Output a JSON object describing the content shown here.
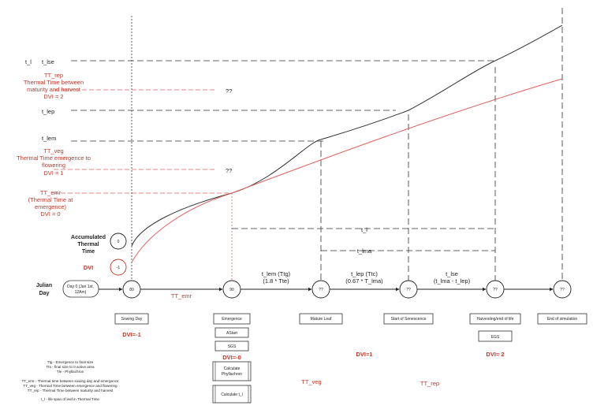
{
  "labels": {
    "t_l": "t_l",
    "t_lse": "t_lse",
    "tt_rep_1": "TT_rep",
    "tt_rep_2": "Thermal Time between",
    "tt_rep_3": "maturity and harvest",
    "tt_rep_4": "DVI = 2",
    "t_lep": "t_lep",
    "t_lem": "t_lem",
    "tt_veg_1": "TT_veg",
    "tt_veg_2": "Thermal Time  emergence to",
    "tt_veg_3": "flowering",
    "tt_veg_4": "DVI = 1",
    "tt_emr_1": "TT_emr",
    "tt_emr_2": "(Thermal Time at",
    "tt_emr_3": "emergence)",
    "tt_emr_4": "DVI = 0",
    "qq_top": "??",
    "qq_mid": "??",
    "acc_1": "Accumulated",
    "acc_2": "Thermal",
    "acc_3": "Time",
    "acc_val": "0",
    "dvi_label": "DVI",
    "dvi_val": "-1",
    "julian_1": "Julian",
    "julian_2": "Day",
    "day0_1": "Day 0 (Jan 1st,",
    "day0_2": "12Am)",
    "t_l_span": "t_l",
    "t_lma_span": "t_lma",
    "seg1_1": "t_lem (Ttg)",
    "seg1_2": "(1.8 * Tte)",
    "seg2_1": "t_lep (Ttc)",
    "seg2_2": "(0.67 * T_lma)",
    "seg3_1": "t_lse",
    "seg3_2": "(t_lma - t_lep)",
    "tt_emr_axis": "TT_emr",
    "tt_veg_axis": "TT_veg",
    "tt_rep_axis": "TT_rep"
  },
  "nodes": [
    {
      "id": "sowing",
      "value": "80",
      "box": "Sowing Day",
      "dvi": "DVI=-1"
    },
    {
      "id": "emergence",
      "value": "90",
      "box": "Emergence",
      "dvi": "DVI=-0"
    },
    {
      "id": "mature",
      "value": "??",
      "box": "Mature Leaf",
      "dvi": ""
    },
    {
      "id": "senescence",
      "value": "??",
      "box": "Start of Senescence",
      "dvi": "DVI=1"
    },
    {
      "id": "harvest",
      "value": "??",
      "box": "Harvesting/end of life",
      "dvi": "DVI= 2"
    },
    {
      "id": "end",
      "value": "??",
      "box": "End of simulation",
      "dvi": ""
    }
  ],
  "emergence_steps": [
    "AStart",
    "SGS",
    "Calculate Phyllachron",
    "Calculate t_l"
  ],
  "egs_box": "EGS",
  "legend": [
    "Ttg - Emergence to final size",
    "Tts - final size to 0 active area",
    "Tle - Phyllachron",
    "TT_emr - Thermal time between sowing day and emergence",
    "TT_veg - Thermal Time between emergence and flowering",
    "TT_rep - Thermal Time between maturity and harvest",
    "t_l - life span of leaf in Thermal Time"
  ],
  "colors": {
    "red": "#c0392b",
    "red_light": "#e06060",
    "line": "#333333"
  }
}
